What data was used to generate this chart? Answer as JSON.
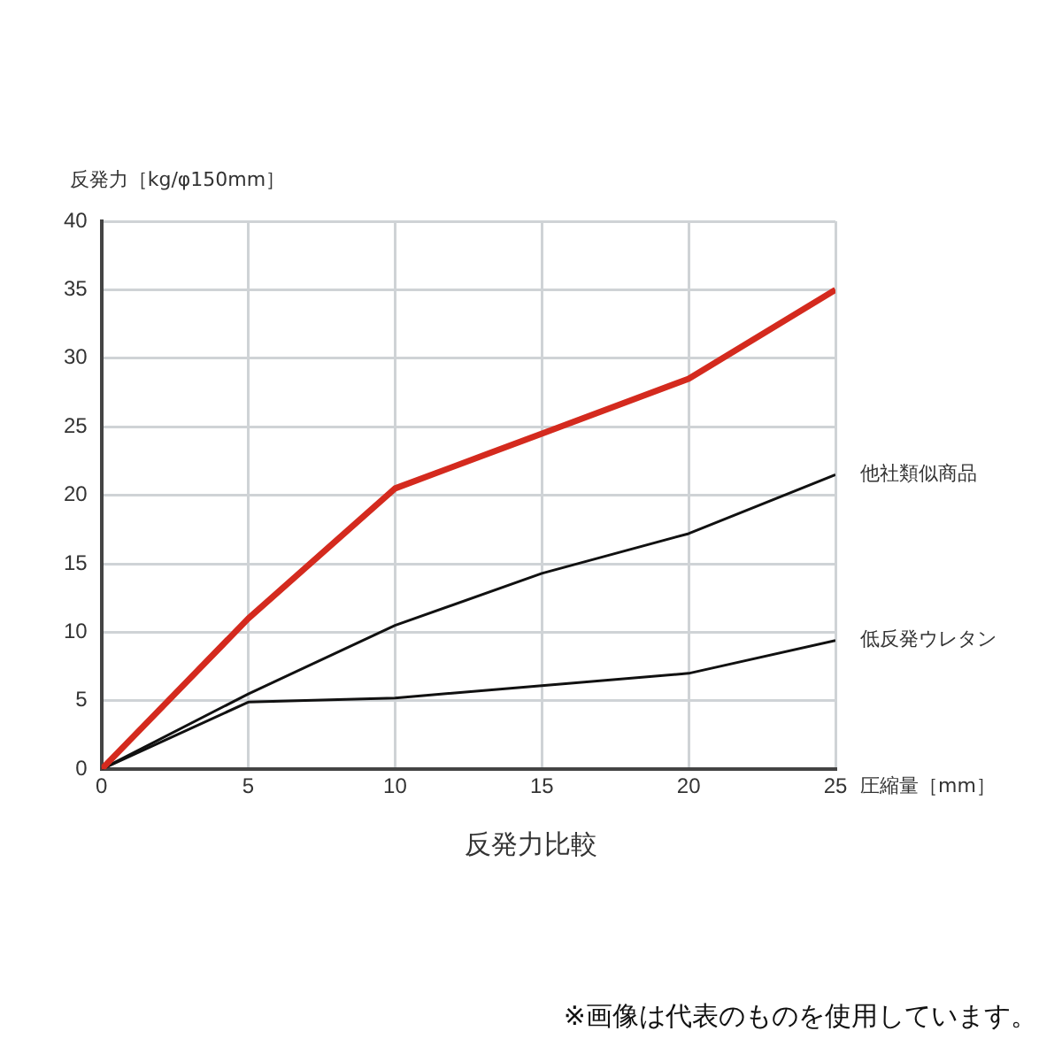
{
  "chart_data": {
    "type": "line",
    "title": "反発力比較",
    "xlabel": "圧縮量［mm］",
    "ylabel": "反発力［kg/φ150mm］",
    "x": [
      0,
      5,
      10,
      15,
      20,
      25
    ],
    "series": [
      {
        "color": "#d42a1e",
        "values": [
          0,
          11,
          20.5,
          24.5,
          28.5,
          35
        ]
      },
      {
        "name": "他社類似商品",
        "color": "#111111",
        "values": [
          0,
          5.5,
          10.5,
          14.3,
          17.2,
          21.5
        ]
      },
      {
        "name": "低反発ウレタン",
        "color": "#111111",
        "values": [
          0,
          4.9,
          5.2,
          6.1,
          7,
          9.4
        ]
      }
    ],
    "xlim": [
      0,
      25
    ],
    "xticks": [
      0,
      5,
      10,
      15,
      20,
      25
    ],
    "ylim": [
      0,
      40
    ],
    "yticks": [
      0,
      5,
      10,
      15,
      20,
      25,
      30,
      35,
      40
    ],
    "grid": true,
    "legend": false,
    "marker": "none",
    "line_style": "solid",
    "annotations": [
      "※画像は代表のものを使用しています。"
    ]
  }
}
